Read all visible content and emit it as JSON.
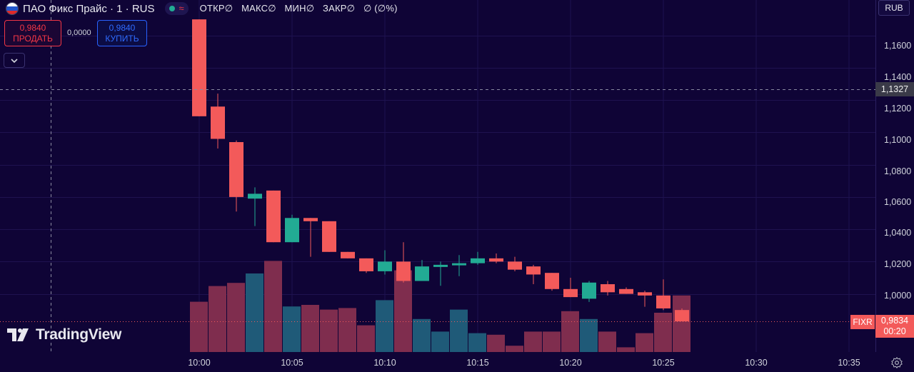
{
  "header": {
    "symbol": "ПАО Фикс Прайс · 1 · RUS",
    "flag": [
      "#ffffff",
      "#2255cc",
      "#e02a2a"
    ],
    "ohlc": [
      "ОТКР∅",
      "МАКС∅",
      "МИН∅",
      "ЗАКР∅",
      "∅ (∅%)"
    ]
  },
  "trade": {
    "sell_price": "0,9840",
    "sell_label": "ПРОДАТЬ",
    "spread": "0,0000",
    "buy_price": "0,9840",
    "buy_label": "КУПИТЬ"
  },
  "currency": "RUB",
  "crosshair_price": "1,1327",
  "last": {
    "symbol": "FIXR",
    "price": "0,9834",
    "countdown": "00:20"
  },
  "logo": "TradingView",
  "icons": {
    "collapse": "chevron-down-icon",
    "settings": "gear-icon",
    "status": "market-status-icon"
  },
  "colors": {
    "up": "#22ab94",
    "down": "#f35a5a",
    "vol_up": "#1f5a78",
    "vol_down": "#7f2d4e",
    "background": "#0f0436",
    "grid": "#1e1250"
  },
  "chart_data": {
    "type": "candlestick",
    "yaxis": {
      "min": 0.964,
      "max": 1.182,
      "ticks": [
        "1,1600",
        "1,1400",
        "1,1200",
        "1,1000",
        "1,0800",
        "1,0600",
        "1,0400",
        "1,0200",
        "1,0000"
      ]
    },
    "xaxis": {
      "ticks": [
        "10:00",
        "10:05",
        "10:10",
        "10:15",
        "10:20",
        "10:25",
        "10:30",
        "10:35"
      ]
    },
    "candles": [
      {
        "time": "10:00",
        "o": 1.17,
        "h": 1.17,
        "l": 1.11,
        "c": 1.11,
        "vol": 32
      },
      {
        "time": "10:01",
        "o": 1.116,
        "h": 1.124,
        "l": 1.09,
        "c": 1.096,
        "vol": 42
      },
      {
        "time": "10:02",
        "o": 1.094,
        "h": 1.095,
        "l": 1.051,
        "c": 1.06,
        "vol": 44
      },
      {
        "time": "10:03",
        "o": 1.059,
        "h": 1.066,
        "l": 1.042,
        "c": 1.062,
        "vol": 50
      },
      {
        "time": "10:04",
        "o": 1.064,
        "h": 1.064,
        "l": 1.032,
        "c": 1.032,
        "vol": 58
      },
      {
        "time": "10:05",
        "o": 1.032,
        "h": 1.049,
        "l": 1.032,
        "c": 1.047,
        "vol": 29
      },
      {
        "time": "10:06",
        "o": 1.047,
        "h": 1.047,
        "l": 1.023,
        "c": 1.045,
        "vol": 30
      },
      {
        "time": "10:07",
        "o": 1.045,
        "h": 1.045,
        "l": 1.026,
        "c": 1.026,
        "vol": 27
      },
      {
        "time": "10:08",
        "o": 1.026,
        "h": 1.026,
        "l": 1.022,
        "c": 1.022,
        "vol": 28
      },
      {
        "time": "10:09",
        "o": 1.022,
        "h": 1.022,
        "l": 1.013,
        "c": 1.014,
        "vol": 17
      },
      {
        "time": "10:10",
        "o": 1.014,
        "h": 1.027,
        "l": 1.012,
        "c": 1.02,
        "vol": 33
      },
      {
        "time": "10:11",
        "o": 1.02,
        "h": 1.032,
        "l": 1.007,
        "c": 1.008,
        "vol": 52
      },
      {
        "time": "10:12",
        "o": 1.008,
        "h": 1.021,
        "l": 1.008,
        "c": 1.017,
        "vol": 21
      },
      {
        "time": "10:13",
        "o": 1.017,
        "h": 1.02,
        "l": 1.005,
        "c": 1.018,
        "vol": 13
      },
      {
        "time": "10:14",
        "o": 1.018,
        "h": 1.024,
        "l": 1.011,
        "c": 1.019,
        "vol": 27
      },
      {
        "time": "10:15",
        "o": 1.019,
        "h": 1.026,
        "l": 1.018,
        "c": 1.022,
        "vol": 12
      },
      {
        "time": "10:16",
        "o": 1.022,
        "h": 1.025,
        "l": 1.019,
        "c": 1.02,
        "vol": 11
      },
      {
        "time": "10:17",
        "o": 1.02,
        "h": 1.023,
        "l": 1.014,
        "c": 1.015,
        "vol": 4
      },
      {
        "time": "10:18",
        "o": 1.017,
        "h": 1.018,
        "l": 1.006,
        "c": 1.012,
        "vol": 13
      },
      {
        "time": "10:19",
        "o": 1.013,
        "h": 1.013,
        "l": 1.002,
        "c": 1.003,
        "vol": 13
      },
      {
        "time": "10:20",
        "o": 1.003,
        "h": 1.01,
        "l": 0.998,
        "c": 0.998,
        "vol": 26
      },
      {
        "time": "10:21",
        "o": 0.997,
        "h": 1.008,
        "l": 0.995,
        "c": 1.007,
        "vol": 21
      },
      {
        "time": "10:22",
        "o": 1.006,
        "h": 1.008,
        "l": 0.999,
        "c": 1.001,
        "vol": 13
      },
      {
        "time": "10:23",
        "o": 1.003,
        "h": 1.004,
        "l": 1.0,
        "c": 1.0,
        "vol": 3
      },
      {
        "time": "10:24",
        "o": 1.001,
        "h": 1.002,
        "l": 0.992,
        "c": 0.999,
        "vol": 12
      },
      {
        "time": "10:25",
        "o": 0.999,
        "h": 1.009,
        "l": 0.99,
        "c": 0.991,
        "vol": 25
      },
      {
        "time": "10:26",
        "o": 0.99,
        "h": 0.991,
        "l": 0.983,
        "c": 0.983,
        "vol": 36
      }
    ]
  }
}
